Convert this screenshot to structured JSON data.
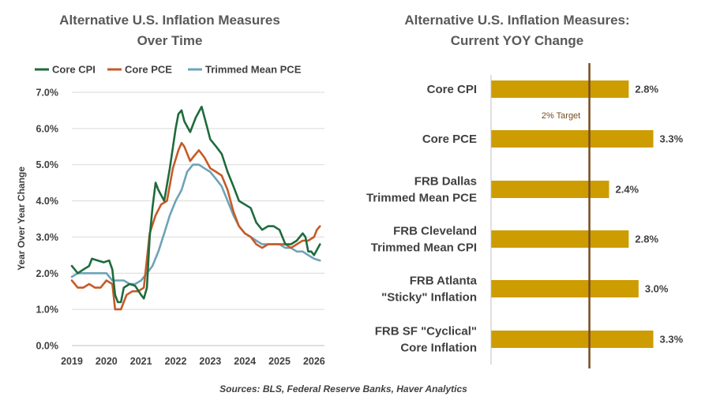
{
  "source": "Sources: BLS, Federal Reserve Banks, Haver Analytics",
  "chart_data": [
    {
      "type": "line",
      "title_lines": [
        "Alternative U.S. Inflation Measures",
        "Over Time"
      ],
      "ylabel": "Year Over Year Change",
      "xlabel": "",
      "xlim": [
        2019.0,
        2026.3
      ],
      "ylim": [
        0,
        7
      ],
      "y_ticks": [
        "0.0%",
        "1.0%",
        "2.0%",
        "3.0%",
        "4.0%",
        "5.0%",
        "6.0%",
        "7.0%"
      ],
      "x_ticks": [
        "2019",
        "2020",
        "2021",
        "2022",
        "2023",
        "2024",
        "2025",
        "2026"
      ],
      "legend_position": "top",
      "series": [
        {
          "name": "Core CPI",
          "color": "#1e6b3c",
          "points": [
            [
              2019.0,
              2.2
            ],
            [
              2019.17,
              2.0
            ],
            [
              2019.33,
              2.1
            ],
            [
              2019.5,
              2.2
            ],
            [
              2019.58,
              2.4
            ],
            [
              2019.75,
              2.35
            ],
            [
              2019.92,
              2.3
            ],
            [
              2020.08,
              2.35
            ],
            [
              2020.17,
              2.1
            ],
            [
              2020.25,
              1.4
            ],
            [
              2020.33,
              1.2
            ],
            [
              2020.42,
              1.2
            ],
            [
              2020.5,
              1.6
            ],
            [
              2020.67,
              1.7
            ],
            [
              2020.83,
              1.65
            ],
            [
              2021.0,
              1.4
            ],
            [
              2021.08,
              1.3
            ],
            [
              2021.17,
              1.6
            ],
            [
              2021.25,
              3.0
            ],
            [
              2021.33,
              3.8
            ],
            [
              2021.42,
              4.5
            ],
            [
              2021.5,
              4.3
            ],
            [
              2021.67,
              4.0
            ],
            [
              2021.83,
              4.9
            ],
            [
              2022.0,
              6.0
            ],
            [
              2022.08,
              6.4
            ],
            [
              2022.17,
              6.5
            ],
            [
              2022.25,
              6.2
            ],
            [
              2022.42,
              5.9
            ],
            [
              2022.58,
              6.3
            ],
            [
              2022.75,
              6.6
            ],
            [
              2022.92,
              6.0
            ],
            [
              2023.0,
              5.7
            ],
            [
              2023.17,
              5.5
            ],
            [
              2023.33,
              5.3
            ],
            [
              2023.5,
              4.8
            ],
            [
              2023.67,
              4.4
            ],
            [
              2023.83,
              4.0
            ],
            [
              2024.0,
              3.9
            ],
            [
              2024.17,
              3.8
            ],
            [
              2024.33,
              3.4
            ],
            [
              2024.5,
              3.2
            ],
            [
              2024.67,
              3.3
            ],
            [
              2024.83,
              3.3
            ],
            [
              2025.0,
              3.2
            ],
            [
              2025.17,
              2.8
            ],
            [
              2025.33,
              2.8
            ],
            [
              2025.5,
              2.9
            ],
            [
              2025.67,
              3.1
            ],
            [
              2025.75,
              3.0
            ],
            [
              2025.83,
              2.6
            ],
            [
              2025.92,
              2.6
            ],
            [
              2026.0,
              2.5
            ],
            [
              2026.17,
              2.8
            ]
          ]
        },
        {
          "name": "Core PCE",
          "color": "#c65a28",
          "points": [
            [
              2019.0,
              1.8
            ],
            [
              2019.17,
              1.6
            ],
            [
              2019.33,
              1.6
            ],
            [
              2019.5,
              1.7
            ],
            [
              2019.67,
              1.6
            ],
            [
              2019.83,
              1.6
            ],
            [
              2020.0,
              1.8
            ],
            [
              2020.17,
              1.7
            ],
            [
              2020.25,
              1.0
            ],
            [
              2020.42,
              1.0
            ],
            [
              2020.58,
              1.4
            ],
            [
              2020.75,
              1.5
            ],
            [
              2020.92,
              1.5
            ],
            [
              2021.08,
              1.6
            ],
            [
              2021.25,
              3.1
            ],
            [
              2021.42,
              3.6
            ],
            [
              2021.58,
              3.9
            ],
            [
              2021.75,
              4.0
            ],
            [
              2021.92,
              4.9
            ],
            [
              2022.08,
              5.4
            ],
            [
              2022.17,
              5.6
            ],
            [
              2022.25,
              5.5
            ],
            [
              2022.42,
              5.1
            ],
            [
              2022.5,
              5.2
            ],
            [
              2022.67,
              5.4
            ],
            [
              2022.83,
              5.2
            ],
            [
              2023.0,
              4.9
            ],
            [
              2023.17,
              4.8
            ],
            [
              2023.33,
              4.7
            ],
            [
              2023.5,
              4.3
            ],
            [
              2023.67,
              3.7
            ],
            [
              2023.83,
              3.3
            ],
            [
              2024.0,
              3.1
            ],
            [
              2024.17,
              3.0
            ],
            [
              2024.33,
              2.8
            ],
            [
              2024.5,
              2.7
            ],
            [
              2024.67,
              2.8
            ],
            [
              2024.83,
              2.8
            ],
            [
              2025.0,
              2.8
            ],
            [
              2025.17,
              2.8
            ],
            [
              2025.33,
              2.7
            ],
            [
              2025.5,
              2.8
            ],
            [
              2025.67,
              2.9
            ],
            [
              2025.83,
              2.9
            ],
            [
              2026.0,
              3.0
            ],
            [
              2026.08,
              3.2
            ],
            [
              2026.17,
              3.3
            ]
          ]
        },
        {
          "name": "Trimmed Mean PCE",
          "color": "#6ea3b8",
          "points": [
            [
              2019.0,
              1.9
            ],
            [
              2019.17,
              2.0
            ],
            [
              2019.33,
              2.0
            ],
            [
              2019.5,
              2.0
            ],
            [
              2019.67,
              2.0
            ],
            [
              2019.83,
              2.0
            ],
            [
              2020.0,
              2.0
            ],
            [
              2020.17,
              1.8
            ],
            [
              2020.33,
              1.8
            ],
            [
              2020.5,
              1.8
            ],
            [
              2020.67,
              1.7
            ],
            [
              2020.83,
              1.7
            ],
            [
              2021.0,
              1.8
            ],
            [
              2021.17,
              2.0
            ],
            [
              2021.33,
              2.2
            ],
            [
              2021.5,
              2.6
            ],
            [
              2021.67,
              3.1
            ],
            [
              2021.83,
              3.6
            ],
            [
              2022.0,
              4.0
            ],
            [
              2022.17,
              4.3
            ],
            [
              2022.33,
              4.8
            ],
            [
              2022.5,
              5.0
            ],
            [
              2022.67,
              5.0
            ],
            [
              2022.83,
              4.9
            ],
            [
              2023.0,
              4.8
            ],
            [
              2023.17,
              4.6
            ],
            [
              2023.33,
              4.4
            ],
            [
              2023.5,
              4.0
            ],
            [
              2023.67,
              3.6
            ],
            [
              2023.83,
              3.3
            ],
            [
              2024.0,
              3.1
            ],
            [
              2024.17,
              3.0
            ],
            [
              2024.33,
              2.9
            ],
            [
              2024.5,
              2.8
            ],
            [
              2024.67,
              2.8
            ],
            [
              2024.83,
              2.8
            ],
            [
              2025.0,
              2.8
            ],
            [
              2025.17,
              2.7
            ],
            [
              2025.33,
              2.7
            ],
            [
              2025.5,
              2.6
            ],
            [
              2025.67,
              2.6
            ],
            [
              2025.83,
              2.5
            ],
            [
              2026.0,
              2.4
            ],
            [
              2026.17,
              2.35
            ]
          ]
        }
      ]
    },
    {
      "type": "bar",
      "orientation": "horizontal",
      "title_lines": [
        "Alternative U.S. Inflation Measures:",
        "Current YOY Change"
      ],
      "categories": [
        [
          "Core CPI"
        ],
        [
          "Core PCE"
        ],
        [
          "FRB Dallas",
          "Trimmed Mean PCE"
        ],
        [
          "FRB Cleveland",
          "Trimmed Mean CPI"
        ],
        [
          "FRB Atlanta",
          "\"Sticky\" Inflation"
        ],
        [
          "FRB SF \"Cyclical\"",
          "Core Inflation"
        ]
      ],
      "values": [
        2.8,
        3.3,
        2.4,
        2.8,
        3.0,
        3.3
      ],
      "value_labels": [
        "2.8%",
        "3.3%",
        "2.4%",
        "2.8%",
        "3.0%",
        "3.3%"
      ],
      "bar_color": "#cc9c00",
      "xlim": [
        0,
        3.5
      ],
      "reference_line": {
        "value": 2.0,
        "label": "2% Target",
        "color": "#7a4b1d"
      }
    }
  ]
}
